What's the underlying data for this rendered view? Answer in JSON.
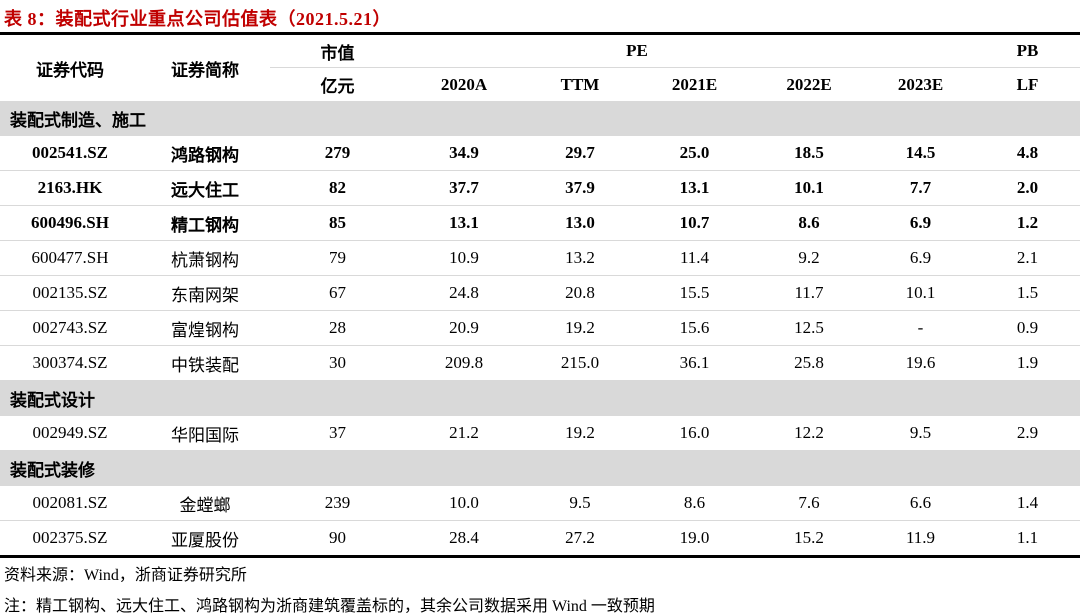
{
  "title": "表 8：装配式行业重点公司估值表（2021.5.21）",
  "colors": {
    "title_red": "#c00000",
    "section_band_bg": "#d9d9d9",
    "divider_gray": "#d9d9d9",
    "rule_black": "#000000"
  },
  "table": {
    "header": {
      "code": "证券代码",
      "name": "证券简称",
      "mktcap_top": "市值",
      "mktcap_unit": "亿元",
      "pe_group": "PE",
      "pb_group": "PB",
      "pe_cols": [
        "2020A",
        "TTM",
        "2021E",
        "2022E",
        "2023E"
      ],
      "pb_col": "LF"
    },
    "sections": [
      {
        "label": "装配式制造、施工",
        "rows": [
          {
            "bold": true,
            "cells": [
              "002541.SZ",
              "鸿路钢构",
              "279",
              "34.9",
              "29.7",
              "25.0",
              "18.5",
              "14.5",
              "4.8"
            ]
          },
          {
            "bold": true,
            "cells": [
              "2163.HK",
              "远大住工",
              "82",
              "37.7",
              "37.9",
              "13.1",
              "10.1",
              "7.7",
              "2.0"
            ]
          },
          {
            "bold": true,
            "cells": [
              "600496.SH",
              "精工钢构",
              "85",
              "13.1",
              "13.0",
              "10.7",
              "8.6",
              "6.9",
              "1.2"
            ]
          },
          {
            "bold": false,
            "cells": [
              "600477.SH",
              "杭萧钢构",
              "79",
              "10.9",
              "13.2",
              "11.4",
              "9.2",
              "6.9",
              "2.1"
            ]
          },
          {
            "bold": false,
            "cells": [
              "002135.SZ",
              "东南网架",
              "67",
              "24.8",
              "20.8",
              "15.5",
              "11.7",
              "10.1",
              "1.5"
            ]
          },
          {
            "bold": false,
            "cells": [
              "002743.SZ",
              "富煌钢构",
              "28",
              "20.9",
              "19.2",
              "15.6",
              "12.5",
              "-",
              "0.9"
            ]
          },
          {
            "bold": false,
            "cells": [
              "300374.SZ",
              "中铁装配",
              "30",
              "209.8",
              "215.0",
              "36.1",
              "25.8",
              "19.6",
              "1.9"
            ]
          }
        ]
      },
      {
        "label": "装配式设计",
        "rows": [
          {
            "bold": false,
            "cells": [
              "002949.SZ",
              "华阳国际",
              "37",
              "21.2",
              "19.2",
              "16.0",
              "12.2",
              "9.5",
              "2.9"
            ]
          }
        ]
      },
      {
        "label": "装配式装修",
        "rows": [
          {
            "bold": false,
            "cells": [
              "002081.SZ",
              "金螳螂",
              "239",
              "10.0",
              "9.5",
              "8.6",
              "7.6",
              "6.6",
              "1.4"
            ]
          },
          {
            "bold": false,
            "cells": [
              "002375.SZ",
              "亚厦股份",
              "90",
              "28.4",
              "27.2",
              "19.0",
              "15.2",
              "11.9",
              "1.1"
            ]
          }
        ]
      }
    ]
  },
  "footer": {
    "source": "资料来源：Wind，浙商证券研究所",
    "note": "注：精工钢构、远大住工、鸿路钢构为浙商建筑覆盖标的，其余公司数据采用 Wind 一致预期"
  }
}
